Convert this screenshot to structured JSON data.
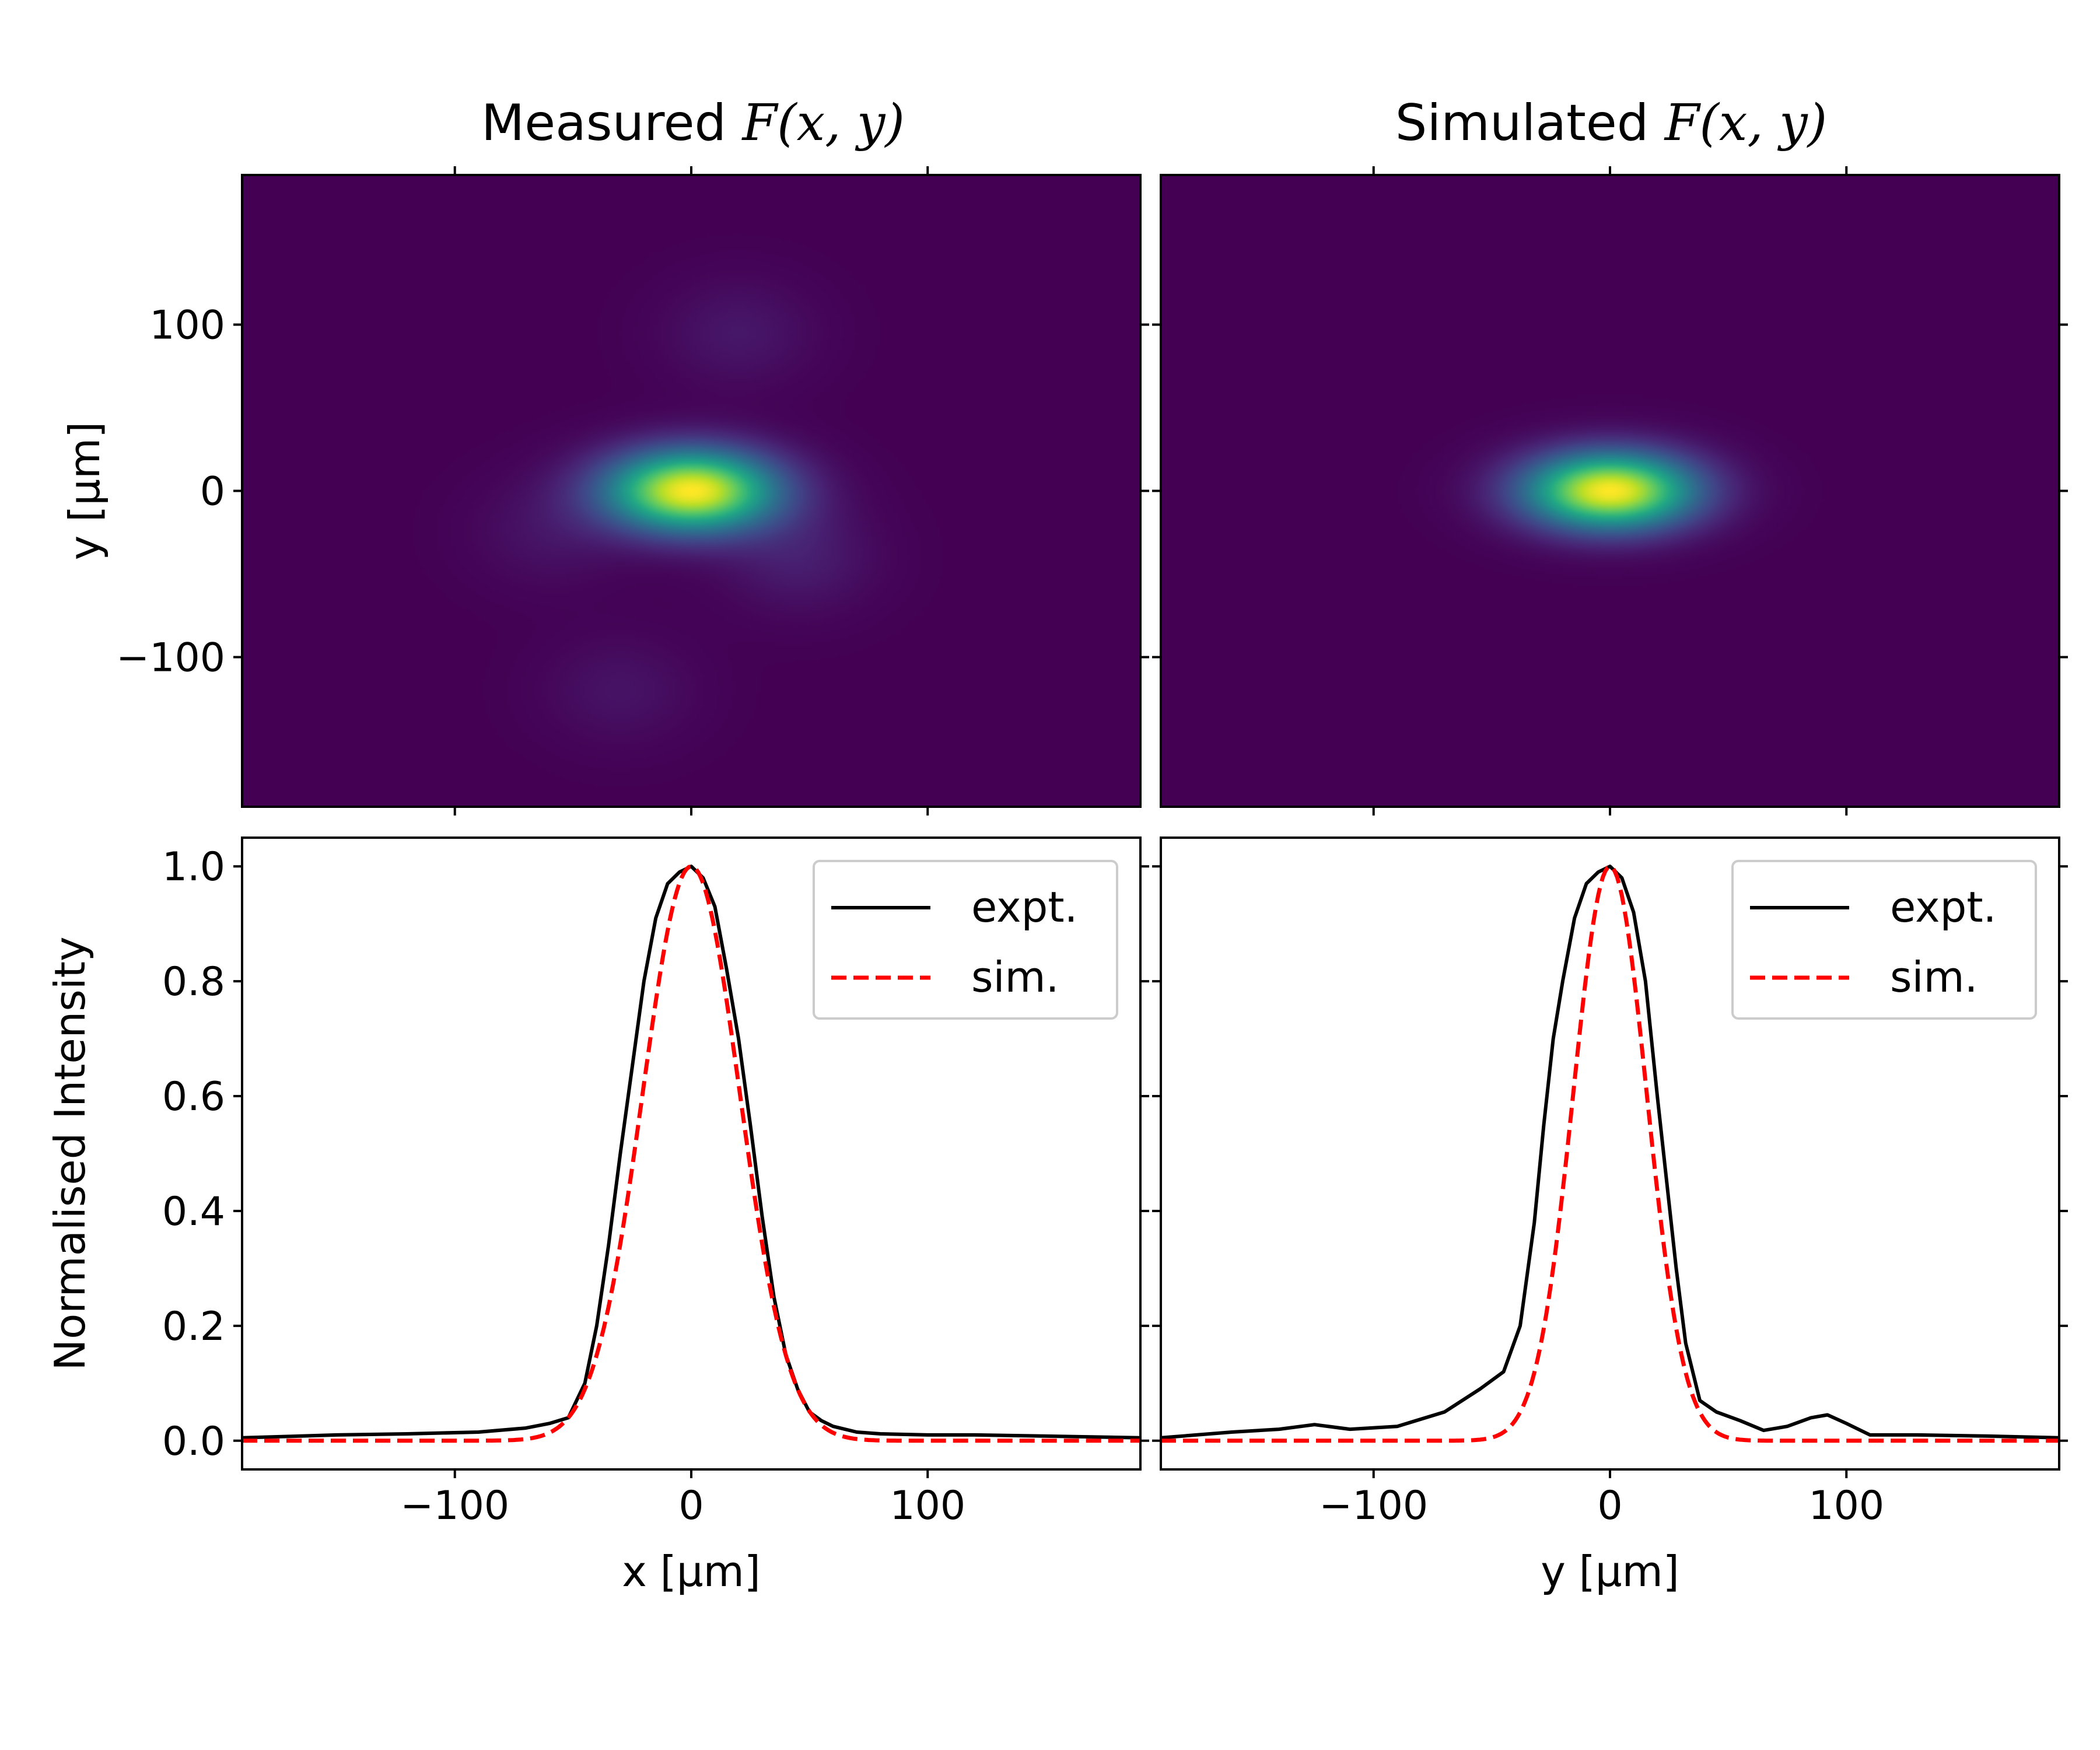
{
  "figure": {
    "titles": {
      "measured_prefix": "Measured ",
      "simulated_prefix": "Simulated ",
      "func": "F(x, y)"
    }
  },
  "chart_data": [
    {
      "type": "heatmap",
      "title": "Measured F(x, y)",
      "colormap": "viridis",
      "xlim": [
        -190,
        190
      ],
      "ylim": [
        -190,
        190
      ],
      "xticks": [
        -100,
        0,
        100
      ],
      "yticks": [
        100,
        0,
        -100
      ],
      "xticklabels": [],
      "yticklabels": [
        "100",
        "0",
        "−100"
      ],
      "ylabel": "y [μm]",
      "peak": {
        "x": 0,
        "y": 0,
        "value": 1.0,
        "sigma_x": 25,
        "sigma_y": 17
      },
      "side_lobes": [
        {
          "x": 20,
          "y": 95,
          "value": 0.06
        },
        {
          "x": 45,
          "y": -40,
          "value": 0.08
        },
        {
          "x": -60,
          "y": -25,
          "value": 0.05
        },
        {
          "x": -30,
          "y": -120,
          "value": 0.05
        }
      ]
    },
    {
      "type": "heatmap",
      "title": "Simulated F(x, y)",
      "colormap": "viridis",
      "xlim": [
        -190,
        190
      ],
      "ylim": [
        -190,
        190
      ],
      "xticks": [
        -100,
        0,
        100
      ],
      "yticks": [
        100,
        0,
        -100
      ],
      "xticklabels": [],
      "yticklabels": [],
      "peak": {
        "x": 0,
        "y": 0,
        "value": 1.0,
        "sigma_x": 25,
        "sigma_y": 16
      }
    },
    {
      "type": "line",
      "xlabel": "x [μm]",
      "ylabel": "Normalised Intensity",
      "xlim": [
        -190,
        190
      ],
      "ylim": [
        -0.05,
        1.05
      ],
      "xticks": [
        -100,
        0,
        100
      ],
      "xticklabels": [
        "−100",
        "0",
        "100"
      ],
      "yticks": [
        0.0,
        0.2,
        0.4,
        0.6,
        0.8,
        1.0
      ],
      "yticklabels": [
        "0.0",
        "0.2",
        "0.4",
        "0.6",
        "0.8",
        "1.0"
      ],
      "legend": {
        "position": "upper right",
        "entries": [
          "expt.",
          "sim."
        ]
      },
      "series": [
        {
          "name": "expt.",
          "color": "#000000",
          "style": "solid",
          "x": [
            -190,
            -150,
            -120,
            -90,
            -70,
            -60,
            -52,
            -45,
            -40,
            -35,
            -30,
            -25,
            -20,
            -15,
            -10,
            -5,
            0,
            5,
            10,
            15,
            20,
            25,
            30,
            35,
            40,
            45,
            50,
            55,
            60,
            70,
            80,
            100,
            120,
            150,
            190
          ],
          "y": [
            0.005,
            0.01,
            0.012,
            0.015,
            0.022,
            0.03,
            0.04,
            0.1,
            0.2,
            0.34,
            0.5,
            0.65,
            0.8,
            0.91,
            0.97,
            0.99,
            1.0,
            0.98,
            0.93,
            0.82,
            0.7,
            0.55,
            0.39,
            0.25,
            0.15,
            0.09,
            0.05,
            0.035,
            0.025,
            0.015,
            0.012,
            0.01,
            0.01,
            0.008,
            0.005
          ]
        },
        {
          "name": "sim.",
          "color": "#ff0000",
          "style": "dashed",
          "gaussian": {
            "center": 0,
            "sigma": 20.5,
            "amplitude": 1.0,
            "offset": 0.0
          }
        }
      ]
    },
    {
      "type": "line",
      "xlabel": "y [μm]",
      "ylabel": "",
      "xlim": [
        -190,
        190
      ],
      "ylim": [
        -0.05,
        1.05
      ],
      "xticks": [
        -100,
        0,
        100
      ],
      "xticklabels": [
        "−100",
        "0",
        "100"
      ],
      "yticks": [
        0.0,
        0.2,
        0.4,
        0.6,
        0.8,
        1.0
      ],
      "yticklabels": [],
      "legend": {
        "position": "upper right",
        "entries": [
          "expt.",
          "sim."
        ]
      },
      "series": [
        {
          "name": "expt.",
          "color": "#000000",
          "style": "solid",
          "x": [
            -190,
            -160,
            -140,
            -125,
            -110,
            -90,
            -70,
            -55,
            -45,
            -38,
            -32,
            -28,
            -24,
            -20,
            -15,
            -10,
            -5,
            0,
            5,
            10,
            15,
            20,
            24,
            28,
            32,
            38,
            45,
            55,
            65,
            75,
            85,
            92,
            100,
            110,
            130,
            160,
            190
          ],
          "y": [
            0.005,
            0.015,
            0.02,
            0.028,
            0.02,
            0.025,
            0.05,
            0.09,
            0.12,
            0.2,
            0.38,
            0.55,
            0.7,
            0.8,
            0.91,
            0.97,
            0.99,
            1.0,
            0.98,
            0.92,
            0.8,
            0.6,
            0.45,
            0.3,
            0.17,
            0.07,
            0.05,
            0.035,
            0.018,
            0.025,
            0.04,
            0.045,
            0.03,
            0.01,
            0.01,
            0.008,
            0.005
          ]
        },
        {
          "name": "sim.",
          "color": "#ff0000",
          "style": "dashed",
          "gaussian": {
            "center": 0,
            "sigma": 15.5,
            "amplitude": 1.0,
            "offset": 0.0
          }
        }
      ]
    }
  ]
}
